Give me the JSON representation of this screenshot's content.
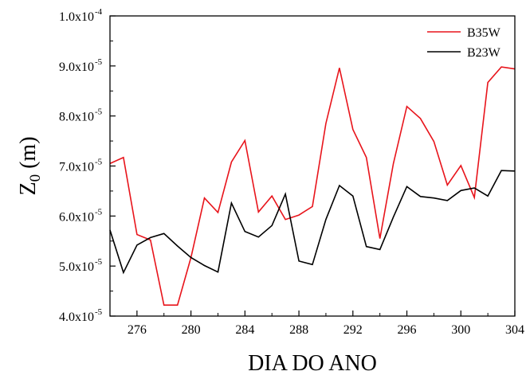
{
  "chart_data": {
    "type": "line",
    "xlabel": "DIA DO ANO",
    "ylabel_main": "Z",
    "ylabel_sub": "0",
    "ylabel_unit": " (m)",
    "xlim": [
      274,
      304
    ],
    "ylim": [
      4e-05,
      0.0001
    ],
    "x_ticks": [
      276,
      280,
      284,
      288,
      292,
      296,
      300,
      304
    ],
    "y_ticks": [
      {
        "value": 4e-05,
        "mantissa": "4.0x10",
        "exp": "-5"
      },
      {
        "value": 5e-05,
        "mantissa": "5.0x10",
        "exp": "-5"
      },
      {
        "value": 6e-05,
        "mantissa": "6.0x10",
        "exp": "-5"
      },
      {
        "value": 7e-05,
        "mantissa": "7.0x10",
        "exp": "-5"
      },
      {
        "value": 8e-05,
        "mantissa": "8.0x10",
        "exp": "-5"
      },
      {
        "value": 9e-05,
        "mantissa": "9.0x10",
        "exp": "-5"
      },
      {
        "value": 0.0001,
        "mantissa": "1.0x10",
        "exp": "-4"
      }
    ],
    "grid": false,
    "legend_position": "top-right",
    "x": [
      274,
      275,
      276,
      277,
      278,
      279,
      280,
      281,
      282,
      283,
      284,
      285,
      286,
      287,
      288,
      289,
      290,
      291,
      292,
      293,
      294,
      295,
      296,
      297,
      298,
      299,
      300,
      301,
      302,
      303,
      304
    ],
    "series": [
      {
        "name": "B35W",
        "color": "#e8141b",
        "values": [
          7.05e-05,
          7.17e-05,
          5.63e-05,
          5.52e-05,
          4.22e-05,
          4.22e-05,
          5.17e-05,
          6.36e-05,
          6.07e-05,
          7.08e-05,
          7.51e-05,
          6.08e-05,
          6.4e-05,
          5.93e-05,
          6.02e-05,
          6.19e-05,
          7.85e-05,
          8.96e-05,
          7.73e-05,
          7.17e-05,
          5.55e-05,
          7.05e-05,
          8.19e-05,
          7.95e-05,
          7.49e-05,
          6.62e-05,
          7.01e-05,
          6.37e-05,
          8.67e-05,
          8.98e-05,
          8.94e-05
        ]
      },
      {
        "name": "B23W",
        "color": "#000000",
        "values": [
          5.72e-05,
          4.87e-05,
          5.42e-05,
          5.57e-05,
          5.65e-05,
          5.4e-05,
          5.17e-05,
          5.01e-05,
          4.88e-05,
          6.26e-05,
          5.69e-05,
          5.58e-05,
          5.81e-05,
          6.44e-05,
          5.1e-05,
          5.03e-05,
          5.93e-05,
          6.61e-05,
          6.4e-05,
          5.39e-05,
          5.33e-05,
          5.98e-05,
          6.59e-05,
          6.39e-05,
          6.36e-05,
          6.31e-05,
          6.51e-05,
          6.56e-05,
          6.4e-05,
          6.91e-05,
          6.9e-05
        ]
      }
    ]
  }
}
